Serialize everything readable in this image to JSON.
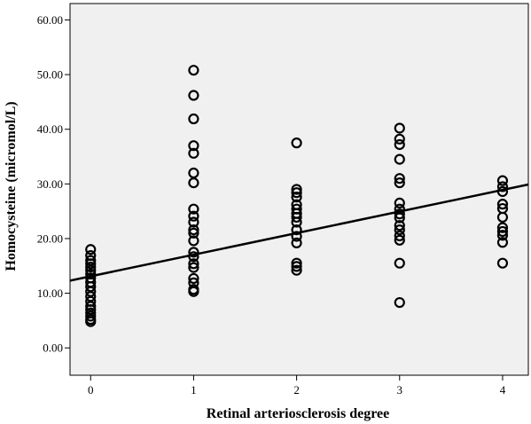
{
  "chart_data": {
    "type": "scatter",
    "xlabel": "Retinal arteriosclerosis degree",
    "ylabel": "Homocysteine (micromol/L)",
    "xlim": [
      -0.2,
      4.25
    ],
    "ylim": [
      -5,
      63
    ],
    "x_ticks": [
      {
        "value": 0,
        "label": "0"
      },
      {
        "value": 1,
        "label": "1"
      },
      {
        "value": 2,
        "label": "2"
      },
      {
        "value": 3,
        "label": "3"
      },
      {
        "value": 4,
        "label": "4"
      }
    ],
    "y_ticks": [
      {
        "value": 0,
        "label": "0.00"
      },
      {
        "value": 10,
        "label": "10.00"
      },
      {
        "value": 20,
        "label": "20.00"
      },
      {
        "value": 30,
        "label": "30.00"
      },
      {
        "value": 40,
        "label": "40.00"
      },
      {
        "value": 50,
        "label": "50.00"
      },
      {
        "value": 60,
        "label": "60.00"
      }
    ],
    "grid": false,
    "plot_background": "#f0f0f0",
    "marker": "open-circle",
    "marker_color": "#000000",
    "points": [
      {
        "x": 0,
        "y": 18.0
      },
      {
        "x": 0,
        "y": 16.9
      },
      {
        "x": 0,
        "y": 16.0
      },
      {
        "x": 0,
        "y": 15.4
      },
      {
        "x": 0,
        "y": 14.8
      },
      {
        "x": 0,
        "y": 14.2
      },
      {
        "x": 0,
        "y": 13.5
      },
      {
        "x": 0,
        "y": 12.8
      },
      {
        "x": 0,
        "y": 12.0
      },
      {
        "x": 0,
        "y": 11.2
      },
      {
        "x": 0,
        "y": 10.3
      },
      {
        "x": 0,
        "y": 9.4
      },
      {
        "x": 0,
        "y": 8.5
      },
      {
        "x": 0,
        "y": 7.6
      },
      {
        "x": 0,
        "y": 7.0
      },
      {
        "x": 0,
        "y": 6.4
      },
      {
        "x": 0,
        "y": 5.8
      },
      {
        "x": 0,
        "y": 5.2
      },
      {
        "x": 0,
        "y": 4.8
      },
      {
        "x": 1,
        "y": 50.8
      },
      {
        "x": 1,
        "y": 46.2
      },
      {
        "x": 1,
        "y": 41.9
      },
      {
        "x": 1,
        "y": 37.0
      },
      {
        "x": 1,
        "y": 35.6
      },
      {
        "x": 1,
        "y": 32.0
      },
      {
        "x": 1,
        "y": 30.2
      },
      {
        "x": 1,
        "y": 25.4
      },
      {
        "x": 1,
        "y": 24.1
      },
      {
        "x": 1,
        "y": 23.0
      },
      {
        "x": 1,
        "y": 21.6
      },
      {
        "x": 1,
        "y": 21.0
      },
      {
        "x": 1,
        "y": 19.6
      },
      {
        "x": 1,
        "y": 17.5
      },
      {
        "x": 1,
        "y": 16.7
      },
      {
        "x": 1,
        "y": 15.4
      },
      {
        "x": 1,
        "y": 14.7
      },
      {
        "x": 1,
        "y": 12.7
      },
      {
        "x": 1,
        "y": 11.9
      },
      {
        "x": 1,
        "y": 10.7
      },
      {
        "x": 1,
        "y": 10.3
      },
      {
        "x": 2,
        "y": 37.5
      },
      {
        "x": 2,
        "y": 29.0
      },
      {
        "x": 2,
        "y": 28.4
      },
      {
        "x": 2,
        "y": 27.6
      },
      {
        "x": 2,
        "y": 26.2
      },
      {
        "x": 2,
        "y": 25.4
      },
      {
        "x": 2,
        "y": 24.6
      },
      {
        "x": 2,
        "y": 23.9
      },
      {
        "x": 2,
        "y": 23.0
      },
      {
        "x": 2,
        "y": 21.6
      },
      {
        "x": 2,
        "y": 20.4
      },
      {
        "x": 2,
        "y": 19.2
      },
      {
        "x": 2,
        "y": 15.5
      },
      {
        "x": 2,
        "y": 14.9
      },
      {
        "x": 2,
        "y": 14.2
      },
      {
        "x": 3,
        "y": 40.2
      },
      {
        "x": 3,
        "y": 38.2
      },
      {
        "x": 3,
        "y": 37.2
      },
      {
        "x": 3,
        "y": 34.5
      },
      {
        "x": 3,
        "y": 31.0
      },
      {
        "x": 3,
        "y": 30.2
      },
      {
        "x": 3,
        "y": 26.5
      },
      {
        "x": 3,
        "y": 25.4
      },
      {
        "x": 3,
        "y": 24.5
      },
      {
        "x": 3,
        "y": 23.8
      },
      {
        "x": 3,
        "y": 22.4
      },
      {
        "x": 3,
        "y": 21.6
      },
      {
        "x": 3,
        "y": 20.5
      },
      {
        "x": 3,
        "y": 19.7
      },
      {
        "x": 3,
        "y": 15.5
      },
      {
        "x": 3,
        "y": 8.3
      },
      {
        "x": 4,
        "y": 30.6
      },
      {
        "x": 4,
        "y": 29.5
      },
      {
        "x": 4,
        "y": 28.6
      },
      {
        "x": 4,
        "y": 26.3
      },
      {
        "x": 4,
        "y": 25.5
      },
      {
        "x": 4,
        "y": 23.9
      },
      {
        "x": 4,
        "y": 22.0
      },
      {
        "x": 4,
        "y": 21.3
      },
      {
        "x": 4,
        "y": 20.6
      },
      {
        "x": 4,
        "y": 19.3
      },
      {
        "x": 4,
        "y": 15.5
      }
    ],
    "fit_line": {
      "type": "linear",
      "intercept": 13.1,
      "slope": 3.95,
      "x_range": [
        -0.2,
        4.25
      ]
    }
  }
}
